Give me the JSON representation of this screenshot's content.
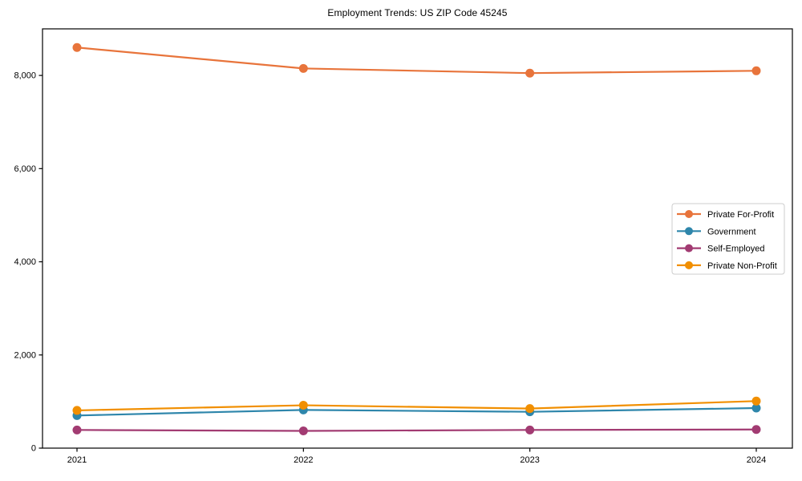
{
  "chart_data": {
    "type": "line",
    "title": "Employment Trends: US ZIP Code 45245",
    "xlabel": "",
    "ylabel": "",
    "x": [
      "2021",
      "2022",
      "2023",
      "2024"
    ],
    "series": [
      {
        "name": "Private For-Profit",
        "color": "#E8743B",
        "values": [
          8600,
          8150,
          8050,
          8100
        ]
      },
      {
        "name": "Government",
        "color": "#2E86AB",
        "values": [
          700,
          820,
          780,
          860
        ]
      },
      {
        "name": "Self-Employed",
        "color": "#A23B72",
        "values": [
          390,
          370,
          390,
          400
        ]
      },
      {
        "name": "Private Non-Profit",
        "color": "#F18F01",
        "values": [
          810,
          920,
          850,
          1010
        ]
      }
    ],
    "ylim": [
      0,
      9000
    ],
    "yticks": [
      0,
      2000,
      4000,
      6000,
      8000
    ],
    "ytick_labels": [
      "0",
      "2,000",
      "4,000",
      "6,000",
      "8,000"
    ],
    "grid": false,
    "legend_position": "center right",
    "marker": "circle",
    "colors": {
      "frame": "#000000",
      "background": "#ffffff",
      "legend_border": "#cccccc",
      "text": "#000000"
    }
  }
}
